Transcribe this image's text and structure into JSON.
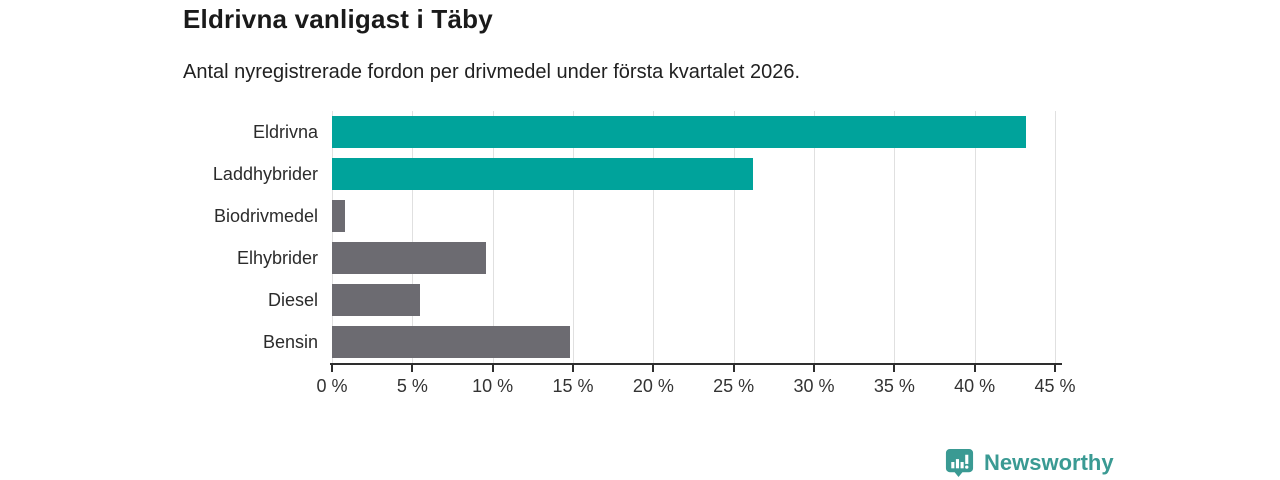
{
  "header": {
    "title": "Eldrivna vanligast i Täby",
    "subtitle": "Antal nyregistrerade fordon per drivmedel under första kvartalet 2026."
  },
  "chart_data": {
    "type": "bar",
    "orientation": "horizontal",
    "title": "Eldrivna vanligast i Täby",
    "subtitle": "Antal nyregistrerade fordon per drivmedel under första kvartalet 2026.",
    "categories": [
      "Eldrivna",
      "Laddhybrider",
      "Biodrivmedel",
      "Elhybrider",
      "Diesel",
      "Bensin"
    ],
    "values": [
      43.2,
      26.2,
      0.8,
      9.6,
      5.5,
      14.8
    ],
    "bar_colors": [
      "teal",
      "teal",
      "gray",
      "gray",
      "gray",
      "gray"
    ],
    "unit": "%",
    "xlim": [
      0,
      45
    ],
    "tick_step": 5,
    "x_ticks": [
      "0 %",
      "5 %",
      "10 %",
      "15 %",
      "20 %",
      "25 %",
      "30 %",
      "35 %",
      "40 %",
      "45 %"
    ],
    "grid": true,
    "legend": "none",
    "xlabel": "",
    "ylabel": ""
  },
  "colors": {
    "teal": "#00a39b",
    "gray": "#6c6b71",
    "grid": "#e0e0e0",
    "axis": "#2e2e2e",
    "tick_text": "#333333",
    "label_text": "#2b2b2b",
    "title_text": "#1a1a1a",
    "logo": "#3a9a93"
  },
  "footer": {
    "brand": "Newsworthy"
  }
}
